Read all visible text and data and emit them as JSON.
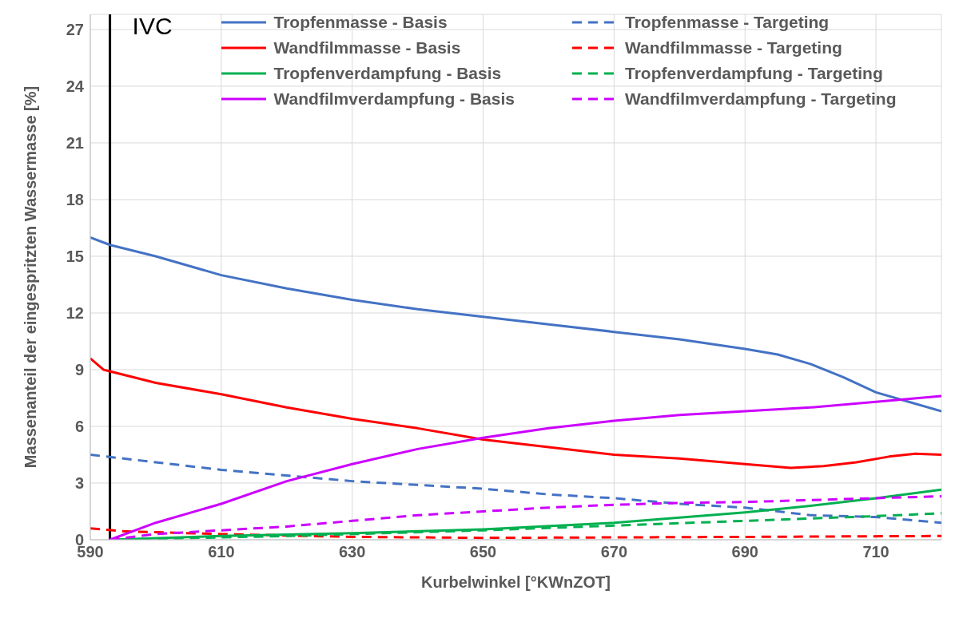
{
  "chart_data": {
    "type": "line",
    "xlabel": "Kurbelwinkel [°KWnZOT]",
    "ylabel": "Massenanteil der eingespritzten Wassermasse [%]",
    "xlim": [
      590,
      720
    ],
    "xticks": [
      590,
      610,
      630,
      650,
      670,
      690,
      710
    ],
    "ylim": [
      0,
      27.8
    ],
    "yticks": [
      0,
      3,
      6,
      9,
      12,
      15,
      18,
      21,
      24,
      27
    ],
    "grid": true,
    "legend": "top",
    "marker": "none",
    "ref_lines": [
      {
        "axis": "x",
        "value": 593,
        "label": "IVC",
        "color": "#000000"
      }
    ],
    "series": [
      {
        "name": "Tropfenmasse - Basis",
        "color": "#4472c4",
        "line_style": "solid",
        "x": [
          590,
          593,
          600,
          610,
          620,
          630,
          640,
          650,
          660,
          670,
          680,
          690,
          695,
          700,
          705,
          710,
          715,
          720
        ],
        "values": [
          16,
          15.6,
          15,
          14,
          13.3,
          12.7,
          12.2,
          11.8,
          11.4,
          11,
          10.6,
          10.1,
          9.8,
          9.3,
          8.6,
          7.8,
          7.3,
          6.8
        ]
      },
      {
        "name": "Tropfenmasse - Targeting",
        "color": "#4472c4",
        "line_style": "dashed",
        "x": [
          590,
          600,
          610,
          620,
          630,
          640,
          650,
          660,
          670,
          680,
          690,
          700,
          710,
          720
        ],
        "values": [
          4.5,
          4.1,
          3.7,
          3.4,
          3.1,
          2.9,
          2.7,
          2.4,
          2.2,
          1.9,
          1.7,
          1.3,
          1.2,
          0.9
        ]
      },
      {
        "name": "Wandfilmmasse - Basis",
        "color": "#ff0000",
        "line_style": "solid",
        "x": [
          590,
          592,
          600,
          610,
          620,
          630,
          640,
          650,
          660,
          670,
          680,
          690,
          697,
          702,
          707,
          712,
          716,
          720
        ],
        "values": [
          9.6,
          9,
          8.3,
          7.7,
          7,
          6.4,
          5.9,
          5.3,
          4.9,
          4.5,
          4.3,
          4,
          3.8,
          3.9,
          4.1,
          4.4,
          4.55,
          4.5
        ]
      },
      {
        "name": "Wandfilmmasse - Targeting",
        "color": "#ff0000",
        "line_style": "dashed",
        "x": [
          590,
          595,
          610,
          630,
          650,
          690,
          720
        ],
        "values": [
          0.6,
          0.45,
          0.3,
          0.15,
          0.1,
          0.15,
          0.2
        ]
      },
      {
        "name": "Tropfenverdampfung - Basis",
        "color": "#00b050",
        "line_style": "solid",
        "x": [
          593,
          610,
          630,
          650,
          670,
          690,
          700,
          710,
          720
        ],
        "values": [
          0,
          0.2,
          0.35,
          0.55,
          0.9,
          1.45,
          1.8,
          2.2,
          2.65
        ]
      },
      {
        "name": "Tropfenverdampfung - Targeting",
        "color": "#00b050",
        "line_style": "dashed",
        "x": [
          593,
          620,
          650,
          670,
          690,
          710,
          720
        ],
        "values": [
          0,
          0.2,
          0.5,
          0.75,
          1,
          1.25,
          1.4
        ]
      },
      {
        "name": "Wandfilmverdampfung - Basis",
        "color": "#cc00ff",
        "line_style": "solid",
        "x": [
          593,
          600,
          610,
          620,
          630,
          640,
          650,
          660,
          670,
          680,
          690,
          700,
          710,
          720
        ],
        "values": [
          0,
          0.9,
          1.9,
          3.1,
          4,
          4.8,
          5.4,
          5.9,
          6.3,
          6.6,
          6.8,
          7,
          7.3,
          7.6
        ]
      },
      {
        "name": "Wandfilmverdampfung - Targeting",
        "color": "#cc00ff",
        "line_style": "dashed",
        "x": [
          593,
          600,
          610,
          620,
          630,
          640,
          650,
          660,
          670,
          680,
          690,
          700,
          710,
          720
        ],
        "values": [
          0,
          0.3,
          0.5,
          0.7,
          1,
          1.3,
          1.5,
          1.7,
          1.85,
          1.95,
          2,
          2.1,
          2.2,
          2.3
        ]
      }
    ]
  }
}
